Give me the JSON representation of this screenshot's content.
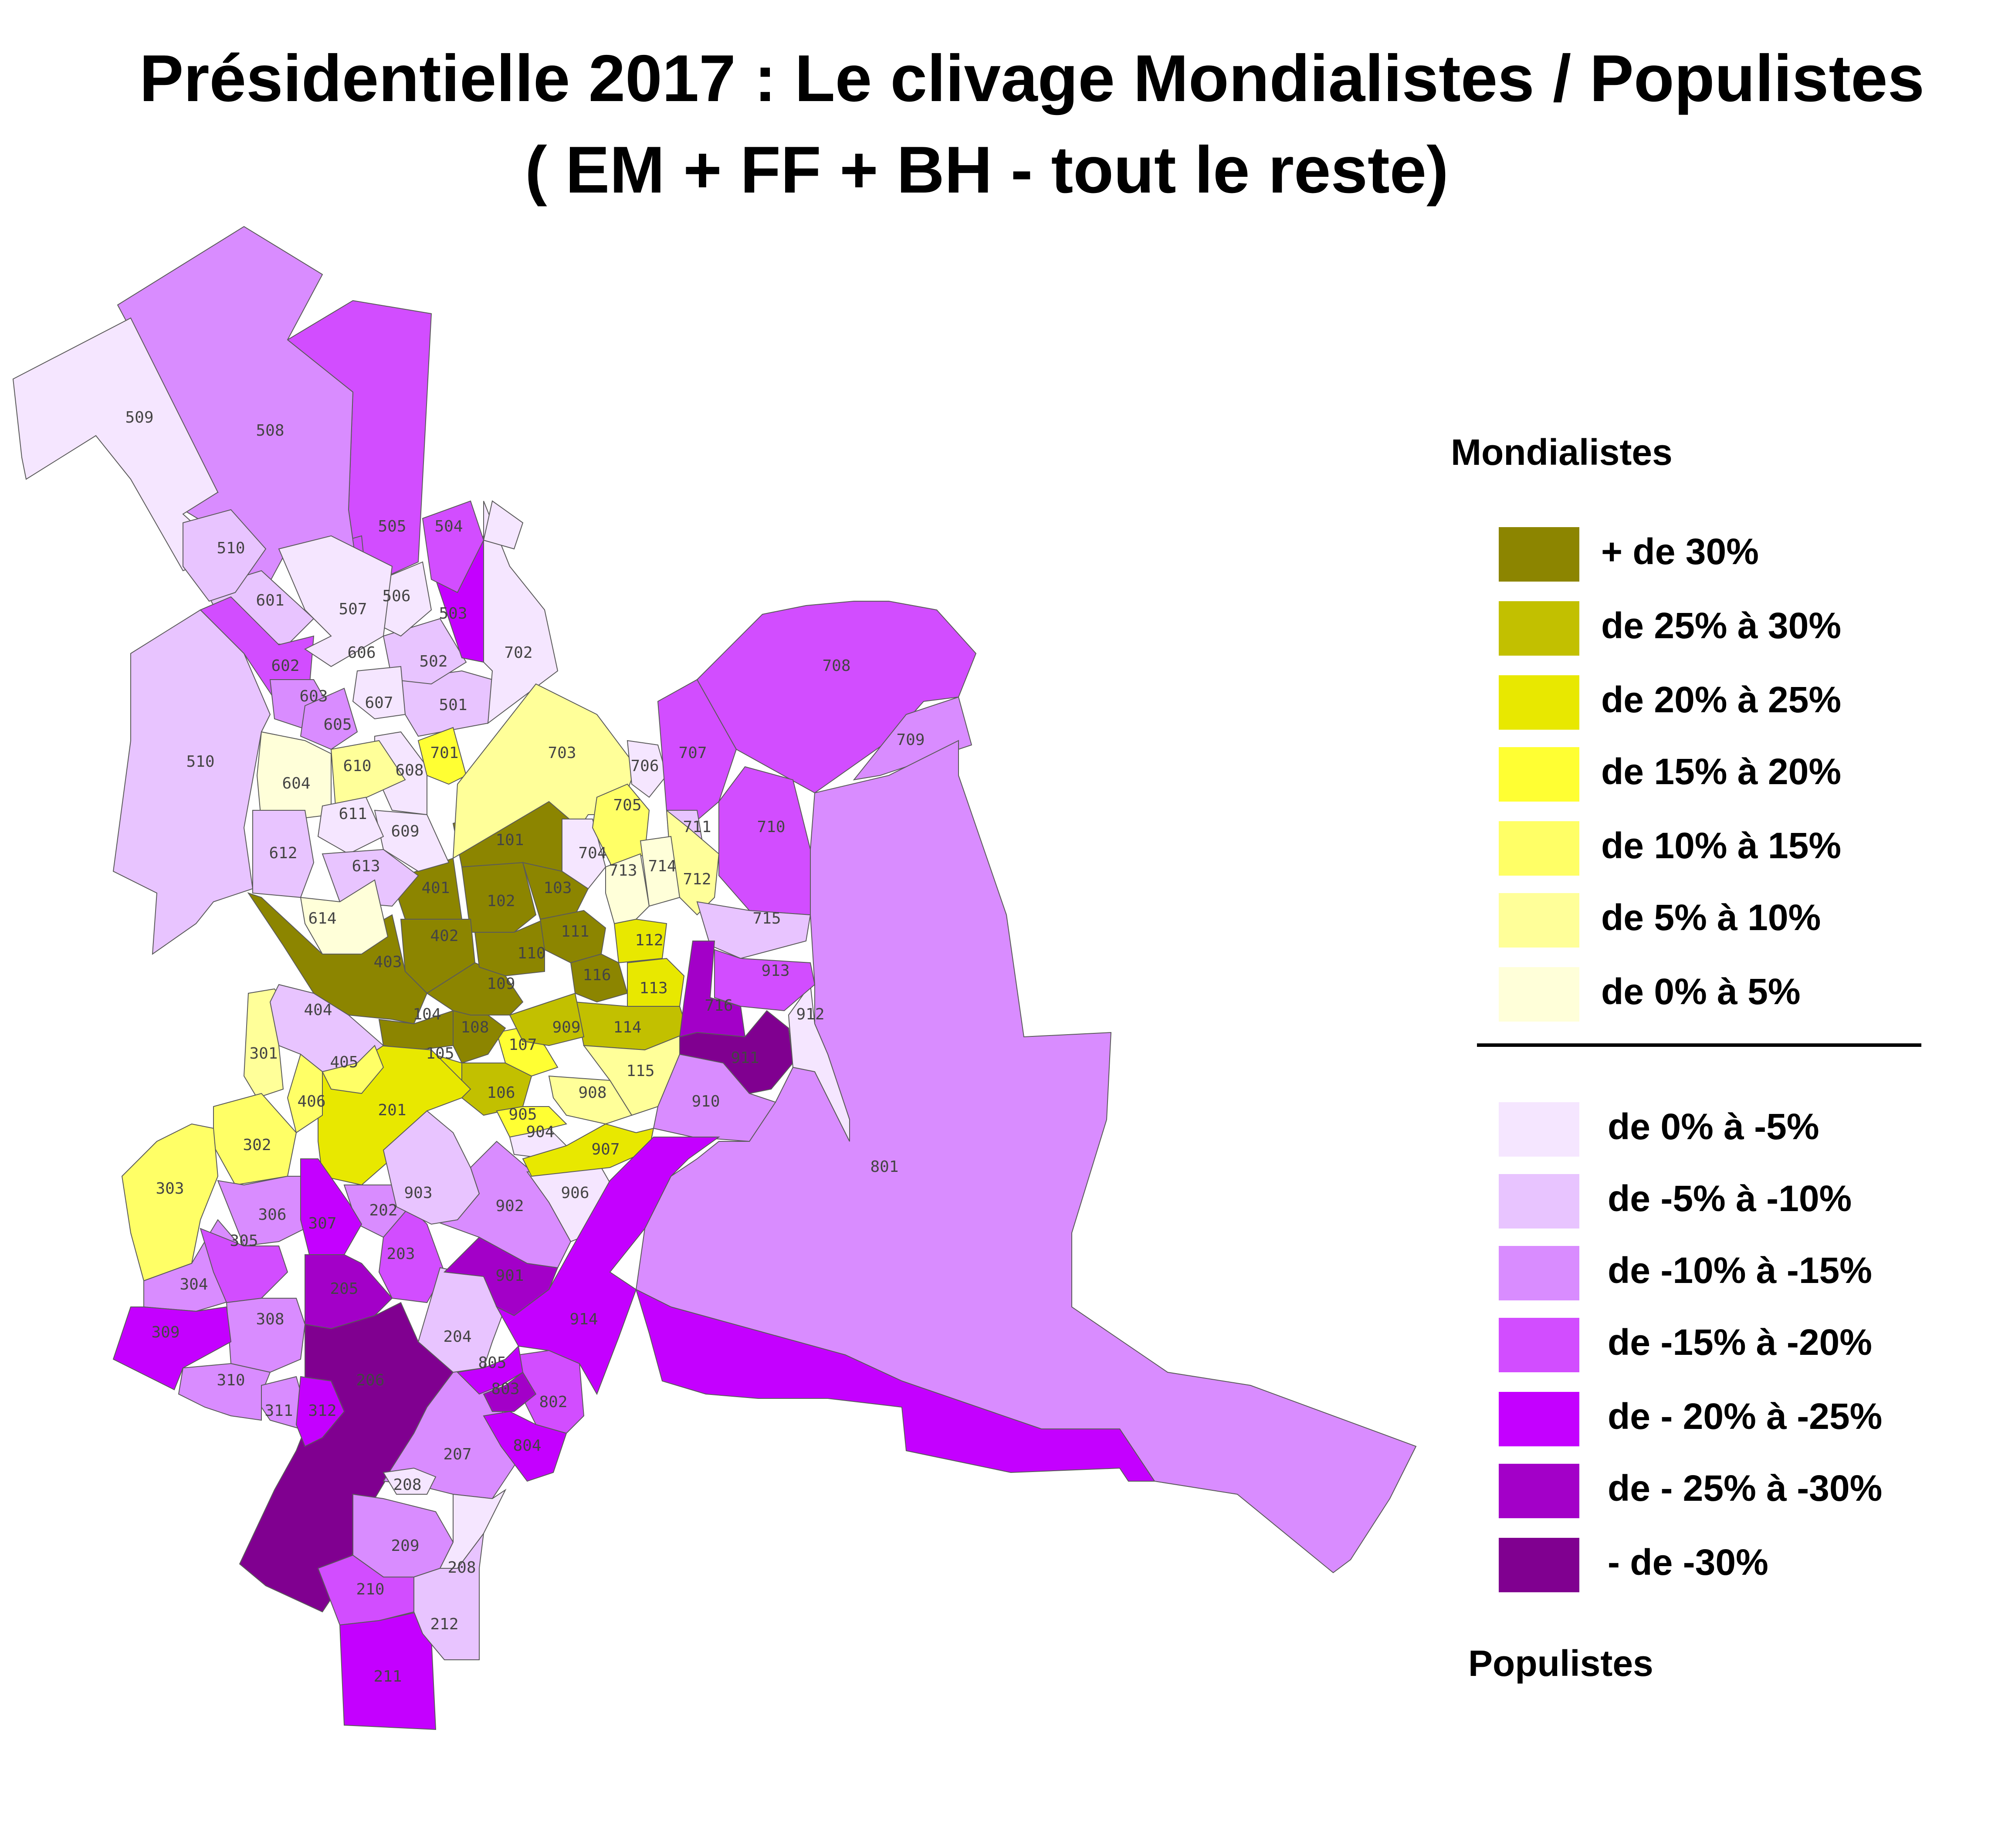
{
  "title": {
    "line1": "Présidentielle 2017 : Le clivage Mondialistes / Populistes",
    "line2": "( EM + FF + BH - tout le reste)"
  },
  "legend": {
    "heading_top": "Mondialistes",
    "heading_bottom": "Populistes",
    "classes": [
      {
        "label": "+ de 30%",
        "color": "#8c8500"
      },
      {
        "label": "de 25% à 30%",
        "color": "#c2c000"
      },
      {
        "label": "de 20% à 25%",
        "color": "#e8e800"
      },
      {
        "label": "de 15% à 20%",
        "color": "#ffff33"
      },
      {
        "label": "de 10% à 15%",
        "color": "#ffff66"
      },
      {
        "label": "de 5% à 10%",
        "color": "#ffff99"
      },
      {
        "label": "de 0% à 5%",
        "color": "#ffffd9"
      },
      {
        "label": "de 0% à -5%",
        "color": "#f5e6ff"
      },
      {
        "label": "de -5% à -10%",
        "color": "#e8c4ff"
      },
      {
        "label": "de -10% à -15%",
        "color": "#d98cff"
      },
      {
        "label": "de -15% à -20%",
        "color": "#d24dff"
      },
      {
        "label": "de - 20% à -25%",
        "color": "#c400ff"
      },
      {
        "label": "de - 25% à -30%",
        "color": "#a300c8"
      },
      {
        "label": "- de -30%",
        "color": "#800090"
      }
    ]
  },
  "regions": [
    {
      "id": "101",
      "cls": 0
    },
    {
      "id": "102",
      "cls": 0
    },
    {
      "id": "103",
      "cls": 0
    },
    {
      "id": "104",
      "cls": 0
    },
    {
      "id": "105",
      "cls": 2
    },
    {
      "id": "106",
      "cls": 1
    },
    {
      "id": "107",
      "cls": 3
    },
    {
      "id": "108",
      "cls": 0
    },
    {
      "id": "109",
      "cls": 0
    },
    {
      "id": "110",
      "cls": 0
    },
    {
      "id": "111",
      "cls": 0
    },
    {
      "id": "112",
      "cls": 2
    },
    {
      "id": "113",
      "cls": 2
    },
    {
      "id": "114",
      "cls": 1
    },
    {
      "id": "115",
      "cls": 5
    },
    {
      "id": "116",
      "cls": 0
    },
    {
      "id": "401",
      "cls": 0
    },
    {
      "id": "402",
      "cls": 0
    },
    {
      "id": "403",
      "cls": 0
    },
    {
      "id": "201",
      "cls": 2
    },
    {
      "id": "202",
      "cls": 9
    },
    {
      "id": "203",
      "cls": 10
    },
    {
      "id": "204",
      "cls": 8
    },
    {
      "id": "205",
      "cls": 12
    },
    {
      "id": "206",
      "cls": 13
    },
    {
      "id": "207",
      "cls": 9
    },
    {
      "id": "208",
      "cls": 7
    },
    {
      "id": "209",
      "cls": 9
    },
    {
      "id": "210",
      "cls": 10
    },
    {
      "id": "211",
      "cls": 11
    },
    {
      "id": "212",
      "cls": 8
    },
    {
      "id": "301",
      "cls": 5
    },
    {
      "id": "302",
      "cls": 4
    },
    {
      "id": "303",
      "cls": 4
    },
    {
      "id": "304",
      "cls": 9
    },
    {
      "id": "305",
      "cls": 10
    },
    {
      "id": "306",
      "cls": 9
    },
    {
      "id": "307",
      "cls": 11
    },
    {
      "id": "308",
      "cls": 9
    },
    {
      "id": "309",
      "cls": 11
    },
    {
      "id": "310",
      "cls": 9
    },
    {
      "id": "311",
      "cls": 9
    },
    {
      "id": "312",
      "cls": 11
    },
    {
      "id": "404",
      "cls": 8
    },
    {
      "id": "405",
      "cls": 4
    },
    {
      "id": "406",
      "cls": 4
    },
    {
      "id": "501",
      "cls": 8
    },
    {
      "id": "502",
      "cls": 8
    },
    {
      "id": "503",
      "cls": 11
    },
    {
      "id": "504",
      "cls": 10
    },
    {
      "id": "505",
      "cls": 10
    },
    {
      "id": "506",
      "cls": 7
    },
    {
      "id": "507",
      "cls": 10
    },
    {
      "id": "508",
      "cls": 9
    },
    {
      "id": "509",
      "cls": 7
    },
    {
      "id": "510",
      "cls": 8
    },
    {
      "id": "601",
      "cls": 8
    },
    {
      "id": "602",
      "cls": 10
    },
    {
      "id": "603",
      "cls": 9
    },
    {
      "id": "604",
      "cls": 6
    },
    {
      "id": "605",
      "cls": 9
    },
    {
      "id": "606",
      "cls": 7
    },
    {
      "id": "607",
      "cls": 7
    },
    {
      "id": "608",
      "cls": 7
    },
    {
      "id": "609",
      "cls": 7
    },
    {
      "id": "610",
      "cls": 5
    },
    {
      "id": "611",
      "cls": 7
    },
    {
      "id": "612",
      "cls": 8
    },
    {
      "id": "613",
      "cls": 8
    },
    {
      "id": "614",
      "cls": 6
    },
    {
      "id": "701",
      "cls": 3
    },
    {
      "id": "702",
      "cls": 7
    },
    {
      "id": "703",
      "cls": 5
    },
    {
      "id": "704",
      "cls": 7
    },
    {
      "id": "705",
      "cls": 4
    },
    {
      "id": "706",
      "cls": 7
    },
    {
      "id": "707",
      "cls": 10
    },
    {
      "id": "708",
      "cls": 10
    },
    {
      "id": "709",
      "cls": 9
    },
    {
      "id": "710",
      "cls": 10
    },
    {
      "id": "711",
      "cls": 8
    },
    {
      "id": "712",
      "cls": 5
    },
    {
      "id": "713",
      "cls": 6
    },
    {
      "id": "714",
      "cls": 6
    },
    {
      "id": "715",
      "cls": 8
    },
    {
      "id": "716",
      "cls": 12
    },
    {
      "id": "801",
      "cls": 9
    },
    {
      "id": "802",
      "cls": 10
    },
    {
      "id": "803",
      "cls": 12
    },
    {
      "id": "804",
      "cls": 11
    },
    {
      "id": "805",
      "cls": 11
    },
    {
      "id": "901",
      "cls": 12
    },
    {
      "id": "902",
      "cls": 9
    },
    {
      "id": "903",
      "cls": 8
    },
    {
      "id": "904",
      "cls": 7
    },
    {
      "id": "905",
      "cls": 3
    },
    {
      "id": "906",
      "cls": 7
    },
    {
      "id": "907",
      "cls": 2
    },
    {
      "id": "908",
      "cls": 5
    },
    {
      "id": "909",
      "cls": 1
    },
    {
      "id": "910",
      "cls": 9
    },
    {
      "id": "911",
      "cls": 13
    },
    {
      "id": "912",
      "cls": 7
    },
    {
      "id": "913",
      "cls": 10
    },
    {
      "id": "914",
      "cls": 11
    },
    {
      "id": "702b",
      "cls": 7
    }
  ]
}
